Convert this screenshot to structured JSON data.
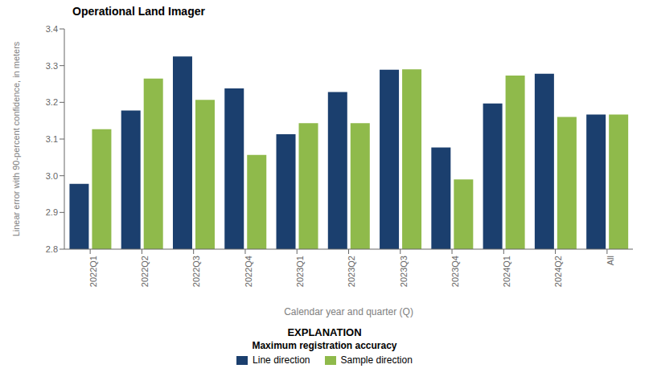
{
  "chart_data": {
    "type": "bar",
    "title": "Operational Land Imager",
    "xlabel": "Calendar year and quarter (Q)",
    "ylabel": "Linear error with 90-percent confidence, in meters",
    "categories": [
      "2022Q1",
      "2022Q2",
      "2022Q3",
      "2022Q4",
      "2023Q1",
      "2023Q2",
      "2023Q3",
      "2023Q4",
      "2024Q1",
      "2024Q2",
      "All"
    ],
    "series": [
      {
        "name": "Line direction",
        "color": "#1b3f6e",
        "values": [
          2.978,
          3.178,
          3.325,
          3.238,
          3.113,
          3.228,
          3.289,
          3.077,
          3.197,
          3.278,
          3.167
        ]
      },
      {
        "name": "Sample direction",
        "color": "#8fba4b",
        "values": [
          3.127,
          3.265,
          3.207,
          3.057,
          3.143,
          3.143,
          3.29,
          2.99,
          3.273,
          3.16,
          3.167
        ]
      }
    ],
    "ylim": [
      2.8,
      3.4
    ],
    "yticks": [
      2.8,
      2.9,
      {
        "value": 3.0,
        "label": "3.0"
      },
      3.1,
      3.2,
      3.3,
      3.4
    ],
    "grid": false,
    "legend": "bottom",
    "legend_title": "Maximum registration accuracy",
    "annotations": [
      "EXPLANATION"
    ]
  }
}
